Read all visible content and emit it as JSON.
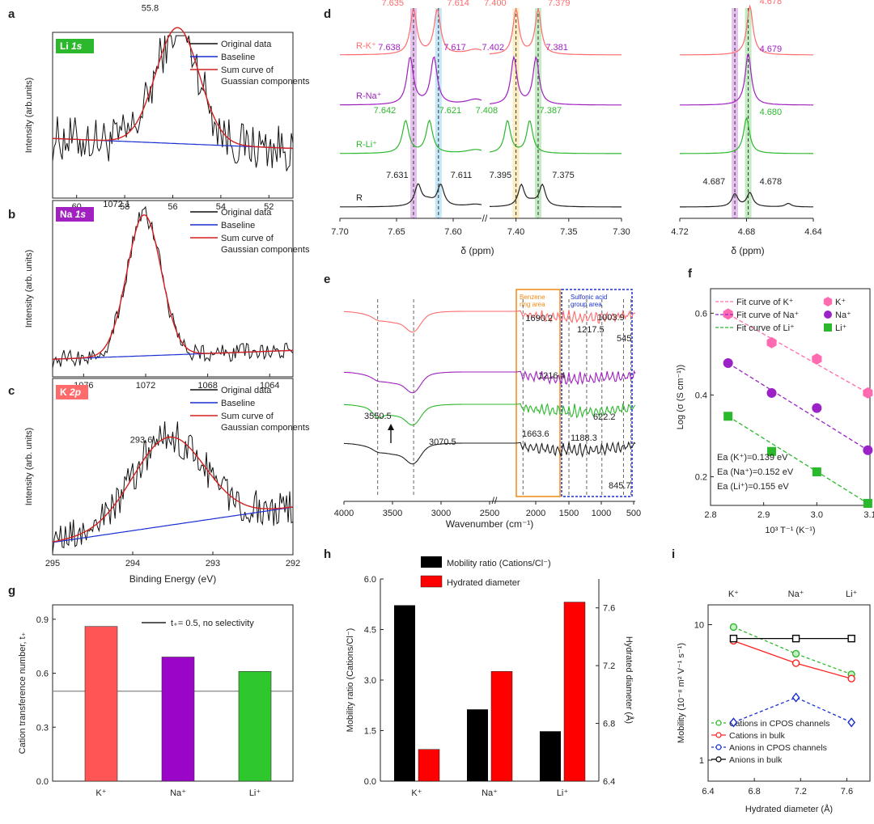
{
  "figure": {
    "panel_letters": [
      "a",
      "b",
      "c",
      "d",
      "e",
      "f",
      "g",
      "h",
      "i"
    ],
    "colors": {
      "k": "#ff6b6b",
      "na": "#a020c0",
      "li": "#2cb82c",
      "r": "#222222",
      "red": "#d42020",
      "blue": "#1a2fd0",
      "axis": "#222222"
    }
  },
  "chart_data": [
    {
      "panel": "a",
      "type": "line",
      "tag": "Li 1s",
      "tag_color": "#2cb82c",
      "peak_label": "55.8",
      "x_ticks": [
        "60",
        "58",
        "56",
        "54",
        "52"
      ],
      "x_range": [
        61,
        51
      ],
      "y_range": [
        0,
        1
      ],
      "xlabel": "",
      "ylabel": "Intensity (arb.units)",
      "peak": {
        "center": 55.8,
        "height": 0.7,
        "sigma": 0.9,
        "noise": 0.14
      },
      "baseline": [
        0.36,
        0.3
      ],
      "legend": [
        "Original data",
        "Baseline",
        "Sum curve of Guassian components"
      ]
    },
    {
      "panel": "b",
      "type": "line",
      "tag": "Na 1s",
      "tag_color": "#a020c0",
      "peak_label": "1072.1",
      "x_ticks": [
        "1076",
        "1072",
        "1068",
        "1064"
      ],
      "x_range": [
        1078,
        1062.5
      ],
      "y_range": [
        0,
        1
      ],
      "xlabel": "",
      "ylabel": "Intensity (arb. units)",
      "peak": {
        "center": 1072.1,
        "height": 0.8,
        "sigma": 1.1,
        "noise": 0.05
      },
      "baseline": [
        0.1,
        0.15
      ],
      "legend": [
        "Original data",
        "Baseline",
        "Sum curve of Gaussian components"
      ]
    },
    {
      "panel": "c",
      "type": "line",
      "tag": "K 2p",
      "tag_color": "#ff6b6b",
      "peak_label": "293.6",
      "x_ticks": [
        "295",
        "294",
        "293",
        "292"
      ],
      "x_range": [
        295,
        292
      ],
      "y_range": [
        0,
        1
      ],
      "xlabel": "Binding Energy (eV)",
      "ylabel": "Intensity (arb. units)",
      "peak": {
        "center": 293.55,
        "height": 0.5,
        "sigma": 0.45,
        "noise": 0.1
      },
      "baseline": [
        0.07,
        0.27
      ],
      "legend": [
        "Original data",
        "Baseline",
        "Sum curve of Gaussian components"
      ]
    },
    {
      "panel": "d",
      "type": "line",
      "xlabel": "δ (ppm)",
      "x_ticks_left": [
        "7.70",
        "7.65",
        "7.60",
        "7.40",
        "7.35",
        "7.30"
      ],
      "x_ticks_right": [
        "4.72",
        "4.68",
        "4.64"
      ],
      "series": [
        {
          "name": "R-K⁺",
          "color": "#ff6b6b",
          "labels_left": [
            "7.635",
            "7.614",
            "7.400",
            "7.379"
          ],
          "labels_right": [
            "4.678"
          ]
        },
        {
          "name": "R-Na⁺",
          "color": "#a020c0",
          "labels_left": [
            "7.638",
            "7.617",
            "7.402",
            "7.381"
          ],
          "labels_right": [
            "4.679"
          ]
        },
        {
          "name": "R-Li⁺",
          "color": "#2cb82c",
          "labels_left": [
            "7.642",
            "7.621",
            "7.408",
            "7.387"
          ],
          "labels_right": [
            "4.680"
          ]
        },
        {
          "name": "R",
          "color": "#222222",
          "labels_left": [
            "7.631",
            "7.611",
            "7.395",
            "7.375"
          ],
          "labels_right": [
            "4.687",
            "4.678"
          ]
        }
      ]
    },
    {
      "panel": "e",
      "type": "line",
      "xlabel": "Wavenumber (cm⁻¹)",
      "x_ticks": [
        "4000",
        "3500",
        "3000",
        "2500",
        "2000",
        "1500",
        "1000",
        "500"
      ],
      "box_labels": [
        "Benzene ring area",
        "Sulfonic acid group area"
      ],
      "annotations": [
        "1690.2",
        "1217.5",
        "1003.9",
        "545",
        "1216.4",
        "622.2",
        "3550.5",
        "3070.5",
        "1663.6",
        "1188.3",
        "845.7"
      ],
      "series": [
        "K⁺",
        "Na⁺",
        "Li⁺",
        "R"
      ]
    },
    {
      "panel": "f",
      "type": "scatter",
      "xlabel": "10³ T⁻¹ (K⁻¹)",
      "ylabel": "Log (σ (S cm⁻¹))",
      "xlim": [
        2.8,
        3.1
      ],
      "ylim": [
        0.13,
        0.66
      ],
      "x_ticks": [
        "2.8",
        "2.9",
        "3.0",
        "3.1"
      ],
      "y_ticks": [
        "0.2",
        "0.4",
        "0.6"
      ],
      "x": [
        2.833,
        2.915,
        3.0,
        3.096
      ],
      "series": [
        {
          "name": "K⁺",
          "fit": "Fit curve of K⁺",
          "values": [
            0.598,
            0.528,
            0.488,
            0.405
          ],
          "color": "#ff6bb0"
        },
        {
          "name": "Na⁺",
          "fit": "Fit curve of Na⁺",
          "values": [
            0.478,
            0.405,
            0.368,
            0.265
          ],
          "color": "#9a22c6"
        },
        {
          "name": "Li⁺",
          "fit": "Fit curve of Li⁺",
          "values": [
            0.348,
            0.262,
            0.212,
            0.135
          ],
          "color": "#2cb82c"
        }
      ],
      "annotations": [
        "Ea (K⁺)=0.139 eV",
        "Ea (Na⁺)=0.152 eV",
        "Ea (Li⁺)=0.155 eV"
      ]
    },
    {
      "panel": "g",
      "type": "bar",
      "ylabel": "Cation transference number, t₊",
      "categories": [
        "K⁺",
        "Na⁺",
        "Li⁺"
      ],
      "values": [
        0.86,
        0.69,
        0.61
      ],
      "colors": [
        "#ff5555",
        "#9a05c8",
        "#2ec82e"
      ],
      "ylim": [
        0,
        0.98
      ],
      "y_ticks": [
        "0.0",
        "0.3",
        "0.6",
        "0.9"
      ],
      "reference": {
        "value": 0.5,
        "label": "t₊= 0.5, no selectivity"
      }
    },
    {
      "panel": "h",
      "type": "bar",
      "ylabel": "Mobility ratio (Cations/Cl⁻)",
      "ylabel_right": "Hydrated diameter (Å)",
      "categories": [
        "K⁺",
        "Na⁺",
        "Li⁺"
      ],
      "series": [
        {
          "name": "Mobility ratio (Cations/Cl⁻)",
          "values": [
            5.22,
            2.13,
            1.48
          ],
          "color": "#000000"
        },
        {
          "name": "Hydrated diameter",
          "values": [
            6.62,
            7.16,
            7.64
          ],
          "color": "#ff0000"
        }
      ],
      "ylim": [
        0,
        6
      ],
      "ylim_right": [
        6.4,
        7.8
      ],
      "y_ticks": [
        "0.0",
        "1.5",
        "3.0",
        "4.5",
        "6.0"
      ],
      "y_ticks_right": [
        "6.4",
        "6.8",
        "7.2",
        "7.6"
      ]
    },
    {
      "panel": "i",
      "type": "line",
      "xlabel": "Hydrated diameter (Å)",
      "ylabel": "Mobility (10⁻⁸ m² V⁻¹ s⁻¹)",
      "x": [
        6.62,
        7.16,
        7.64
      ],
      "xlim": [
        6.4,
        7.8
      ],
      "ylim": [
        0.7,
        14
      ],
      "scale": "log",
      "x_ticks": [
        "6.4",
        "6.8",
        "7.2",
        "7.6"
      ],
      "y_ticks": [
        "1",
        "10"
      ],
      "top_labels": [
        "K⁺",
        "Na⁺",
        "Li⁺"
      ],
      "series": [
        {
          "name": "Cations in CPOS channels",
          "values": [
            9.6,
            6.1,
            4.3
          ],
          "color": "#2cb82c",
          "dash": true,
          "marker": "halfcircle"
        },
        {
          "name": "Cations in bulk",
          "values": [
            7.6,
            5.2,
            4.0
          ],
          "color": "#ff2020",
          "dash": false,
          "marker": "circle"
        },
        {
          "name": "Anions in CPOS channels",
          "values": [
            1.9,
            2.9,
            1.9
          ],
          "color": "#1a2fd0",
          "dash": true,
          "marker": "diamond"
        },
        {
          "name": "Anions in bulk",
          "values": [
            7.9,
            7.9,
            7.9
          ],
          "color": "#000000",
          "dash": false,
          "marker": "square"
        }
      ]
    }
  ]
}
